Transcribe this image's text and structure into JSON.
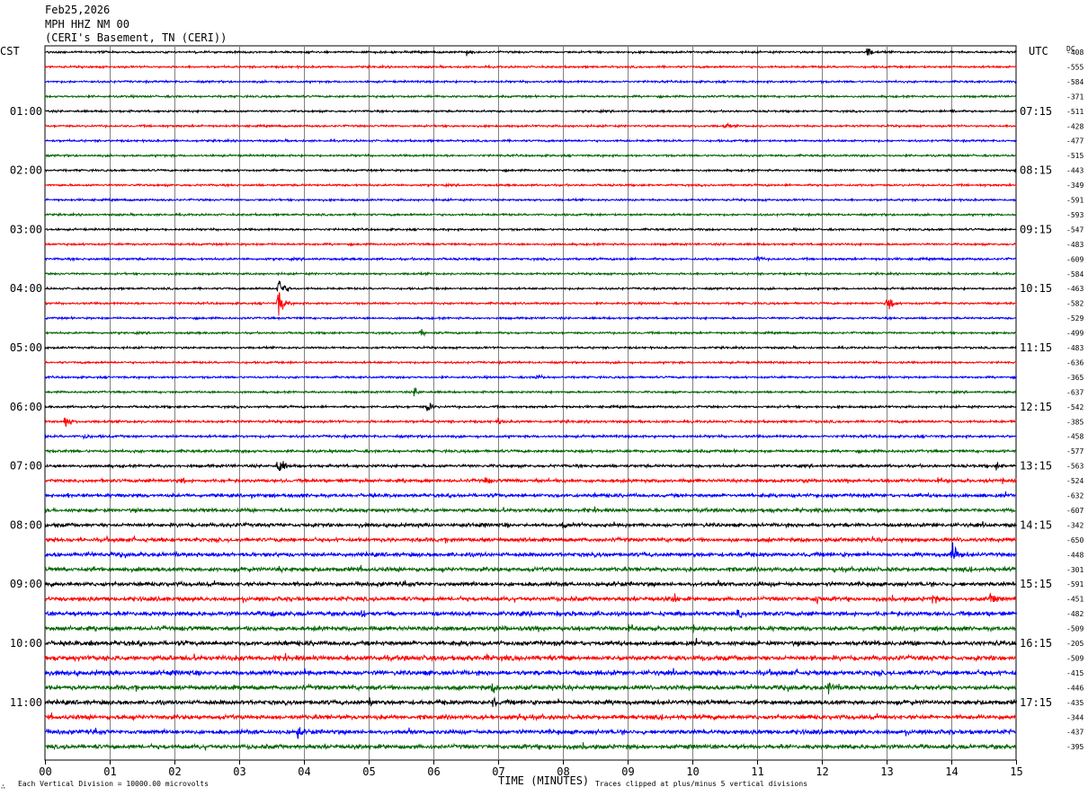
{
  "header": {
    "date": "Feb25,2026",
    "station": "MPH HHZ NM 00",
    "location": "(CERI's Basement, TN (CERI))"
  },
  "left_tz": "CST",
  "right_tz": "UTC",
  "dc_label": "DC",
  "footer": {
    "left_mark": "∴",
    "scale_note": "Each Vertical Division = 10000.00 microvolts",
    "axis_title": "TIME (MINUTES)",
    "clip_note": "Traces clipped at plus/minus 5 vertical divisions"
  },
  "colors": {
    "trace_cycle": [
      "#000000",
      "#ff0000",
      "#0000ff",
      "#006400"
    ],
    "grid": "#808080"
  },
  "chart_data": {
    "type": "line",
    "title": "",
    "xlabel": "TIME (MINUTES)",
    "xlim": [
      0,
      15
    ],
    "x_ticks": [
      "00",
      "01",
      "02",
      "03",
      "04",
      "05",
      "06",
      "07",
      "08",
      "09",
      "10",
      "11",
      "12",
      "13",
      "14",
      "15"
    ],
    "left_hour_labels": [
      "01:00",
      "02:00",
      "03:00",
      "04:00",
      "05:00",
      "06:00",
      "07:00",
      "08:00",
      "09:00",
      "10:00",
      "11:00"
    ],
    "right_hour_labels": [
      "07:15",
      "08:15",
      "09:15",
      "10:15",
      "11:15",
      "12:15",
      "13:15",
      "14:15",
      "15:15",
      "16:15",
      "17:15"
    ],
    "rows_per_hour": 4,
    "dc_offsets": [
      "-408",
      "-555",
      "-584",
      "-371",
      "-511",
      "-428",
      "-477",
      "-515",
      "-443",
      "-349",
      "-591",
      "-593",
      "-547",
      "-483",
      "-609",
      "-584",
      "-463",
      "-582",
      "-529",
      "-499",
      "-483",
      "-636",
      "-365",
      "-637",
      "-542",
      "-385",
      "-458",
      "-577",
      "-563",
      "-524",
      "-632",
      "-607",
      "-342",
      "-650",
      "-448",
      "-301",
      "-591",
      "-451",
      "-482",
      "-509",
      "-205",
      "-509",
      "-415",
      "-446",
      "-435",
      "-344",
      "-437",
      "-395"
    ],
    "noise_level": [
      1,
      1,
      1,
      1,
      1,
      1,
      1,
      1,
      1,
      1,
      1,
      1,
      1,
      1,
      1.1,
      1,
      1,
      1,
      1,
      1,
      1,
      1,
      1,
      1,
      1.1,
      1.2,
      1.2,
      1.3,
      1.4,
      1.6,
      1.7,
      1.7,
      1.8,
      1.9,
      1.9,
      2.0,
      2.0,
      2.0,
      2.1,
      2.1,
      2.2,
      2.3,
      2.3,
      2.2,
      2.1,
      2.1,
      2.1,
      2.1
    ],
    "events": [
      {
        "row": 0,
        "minute": 6.5,
        "amp": 1.6
      },
      {
        "row": 0,
        "minute": 12.7,
        "amp": 2.2
      },
      {
        "row": 4,
        "minute": 14.0,
        "amp": 1.2
      },
      {
        "row": 5,
        "minute": 10.5,
        "amp": 1.3
      },
      {
        "row": 14,
        "minute": 11.0,
        "amp": 1.5
      },
      {
        "row": 16,
        "minute": 3.6,
        "amp": 5.0
      },
      {
        "row": 17,
        "minute": 3.6,
        "amp": 5.0
      },
      {
        "row": 17,
        "minute": 13.0,
        "amp": 3.5
      },
      {
        "row": 19,
        "minute": 5.8,
        "amp": 1.5
      },
      {
        "row": 22,
        "minute": 7.6,
        "amp": 1.5
      },
      {
        "row": 23,
        "minute": 5.7,
        "amp": 2.0
      },
      {
        "row": 24,
        "minute": 5.9,
        "amp": 2.5
      },
      {
        "row": 25,
        "minute": 0.3,
        "amp": 3.0
      },
      {
        "row": 25,
        "minute": 7.0,
        "amp": 1.5
      },
      {
        "row": 26,
        "minute": 0.6,
        "amp": 1.5
      },
      {
        "row": 28,
        "minute": 3.6,
        "amp": 4.0
      },
      {
        "row": 28,
        "minute": 14.7,
        "amp": 2.0
      },
      {
        "row": 29,
        "minute": 2.1,
        "amp": 2.0
      },
      {
        "row": 29,
        "minute": 6.8,
        "amp": 2.0
      },
      {
        "row": 32,
        "minute": 8.0,
        "amp": 2.0
      },
      {
        "row": 34,
        "minute": 14.0,
        "amp": 5.0
      },
      {
        "row": 35,
        "minute": 3.6,
        "amp": 2.0
      },
      {
        "row": 37,
        "minute": 9.7,
        "amp": 2.5
      },
      {
        "row": 37,
        "minute": 11.9,
        "amp": 2.5
      },
      {
        "row": 37,
        "minute": 13.7,
        "amp": 2.5
      },
      {
        "row": 37,
        "minute": 14.6,
        "amp": 3.0
      },
      {
        "row": 38,
        "minute": 3.5,
        "amp": 2.5
      },
      {
        "row": 38,
        "minute": 4.9,
        "amp": 2.5
      },
      {
        "row": 38,
        "minute": 10.7,
        "amp": 2.5
      },
      {
        "row": 40,
        "minute": 0.7,
        "amp": 2.0
      },
      {
        "row": 41,
        "minute": 6.8,
        "amp": 2.0
      },
      {
        "row": 43,
        "minute": 6.9,
        "amp": 2.5
      },
      {
        "row": 43,
        "minute": 12.1,
        "amp": 3.0
      },
      {
        "row": 44,
        "minute": 5.0,
        "amp": 2.5
      },
      {
        "row": 44,
        "minute": 6.9,
        "amp": 2.5
      },
      {
        "row": 45,
        "minute": 7.3,
        "amp": 2.0
      },
      {
        "row": 46,
        "minute": 3.9,
        "amp": 2.5
      },
      {
        "row": 47,
        "minute": 7.8,
        "amp": 1.8
      }
    ]
  }
}
